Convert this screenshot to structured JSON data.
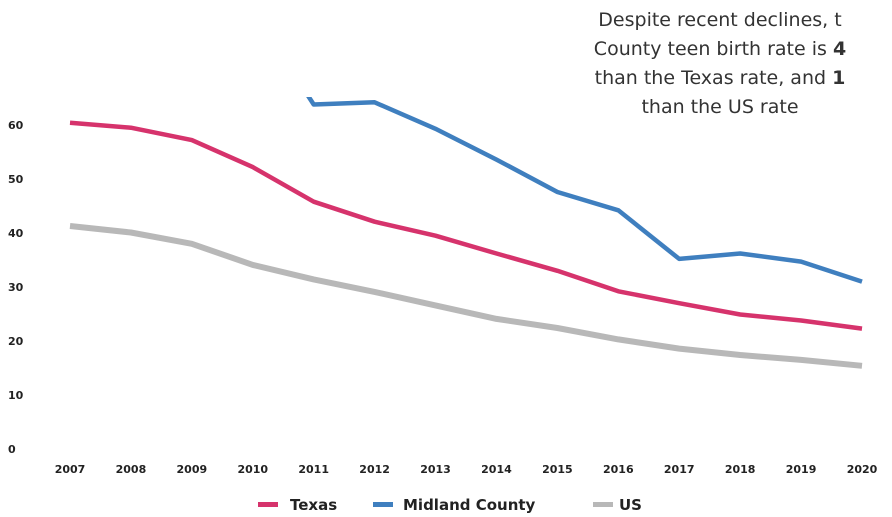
{
  "chart_data": {
    "type": "line",
    "x": [
      "2007",
      "2008",
      "2009",
      "2010",
      "2011",
      "2012",
      "2013",
      "2014",
      "2015",
      "2016",
      "2017",
      "2018",
      "2019",
      "2020"
    ],
    "series": [
      {
        "name": "Texas",
        "color": "#d6336c",
        "values": [
          60.4,
          59.5,
          57.2,
          52.2,
          45.8,
          42.1,
          39.5,
          36.2,
          33.0,
          29.2,
          27.0,
          24.9,
          23.8,
          22.3
        ]
      },
      {
        "name": "Midland County",
        "color": "#3f7fbf",
        "values": [
          null,
          null,
          null,
          null,
          63.8,
          64.2,
          59.3,
          53.6,
          47.6,
          44.2,
          35.2,
          36.2,
          34.7,
          31.0
        ]
      },
      {
        "name": "US",
        "color": "#b8b8b8",
        "values": [
          41.3,
          40.1,
          38.0,
          34.1,
          31.4,
          29.1,
          26.6,
          24.1,
          22.4,
          20.3,
          18.6,
          17.4,
          16.5,
          15.4
        ]
      }
    ],
    "yticks": [
      "0",
      "10",
      "20",
      "30",
      "40",
      "50",
      "60"
    ],
    "ylim": [
      0,
      65.4
    ],
    "grid": false,
    "legend_position": "bottom",
    "annotation": {
      "line1": "Despite recent declines, t",
      "line2_a": "County teen birth rate is ",
      "line2_b": "4",
      "line3_a": "than the Texas rate, and ",
      "line3_b": "1",
      "line4": "than the US rate"
    }
  }
}
